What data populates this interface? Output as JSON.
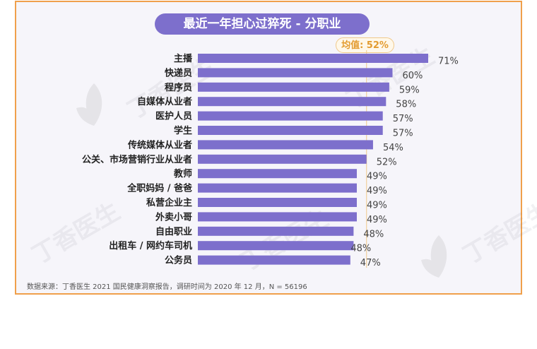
{
  "chart_data": {
    "type": "bar",
    "orientation": "horizontal",
    "title": "最近一年担心过猝死 - 分职业",
    "categories": [
      "主播",
      "快递员",
      "程序员",
      "自媒体从业者",
      "医护人员",
      "学生",
      "传统媒体从业者",
      "公关、市场营销行业从业者",
      "教师",
      "全职妈妈 / 爸爸",
      "私营企业主",
      "外卖小哥",
      "自由职业",
      "出租车 / 网约车司机",
      "公务员"
    ],
    "values": [
      71,
      60,
      59,
      58,
      57,
      57,
      54,
      52,
      49,
      49,
      49,
      49,
      48,
      48,
      47
    ],
    "value_labels": [
      "71%",
      "60%",
      "59%",
      "58%",
      "57%",
      "57%",
      "54%",
      "52%",
      "49%",
      "49%",
      "49%",
      "49%",
      "48%",
      "48%",
      "47%"
    ],
    "average": {
      "label": "均值: 52%",
      "value": 52
    },
    "xlim": [
      0,
      71
    ],
    "bar_color": "#7d6fcc",
    "grid": false
  },
  "source": "数据来源：丁香医生 2021 国民健康洞察报告，调研时间为 2020 年 12 月，N = 56196",
  "watermark": "丁香医生",
  "colors": {
    "border": "#f0a04b",
    "title_bg": "#7d6fcc",
    "avg_text": "#e39b2f",
    "background": "#f6f5fa"
  }
}
